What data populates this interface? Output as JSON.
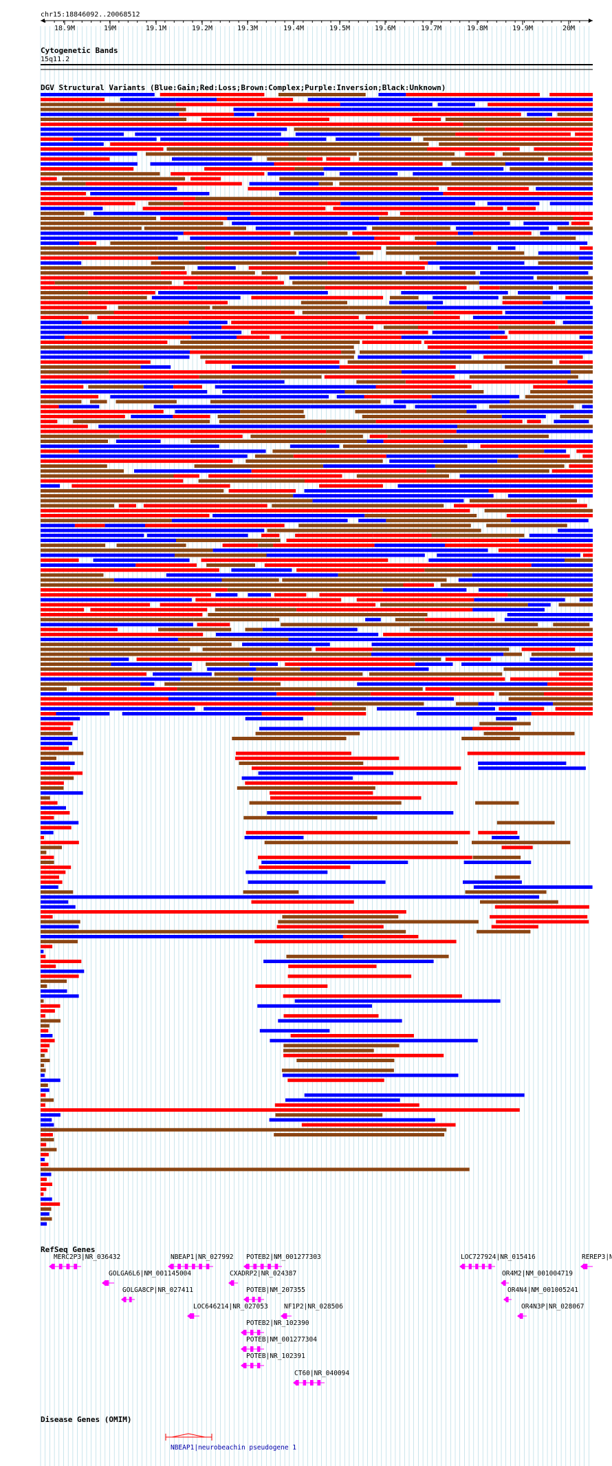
{
  "ruler": {
    "location": "chr15:18846092..20068512",
    "ticks": [
      "18.9M",
      "19M",
      "19.1M",
      "19.2M",
      "19.3M",
      "19.4M",
      "19.5M",
      "19.6M",
      "19.7M",
      "19.8M",
      "19.9M",
      "20M"
    ]
  },
  "cytoband": {
    "title": "Cytogenetic Bands",
    "band": "15q11.2"
  },
  "dgv": {
    "title": "DGV Structural Variants (Blue:Gain;Red:Loss;Brown:Complex;Purple:Inversion;Black:Unknown)",
    "colors": {
      "gain": "#0000ff",
      "loss": "#ff0000",
      "complex": "#8b4513",
      "inversion": "#800080",
      "unknown": "#000000"
    }
  },
  "refseq": {
    "title": "RefSeq Genes",
    "color": "#ff00ff",
    "genes": [
      "MERC2P3|NR_036432",
      "NBEAP1|NR_027992",
      "POTEB2|NM_001277303",
      "LOC727924|NR_015416",
      "REREP3|N",
      "GOLGA6L6|NM_001145004",
      "CXADRP2|NR_024387",
      "OR4M2|NM_001004719",
      "GOLGA8CP|NR_027411",
      "POTEB|NM_207355",
      "OR4N4|NM_001005241",
      "LOC646214|NR_027053",
      "NF1P2|NR_028506",
      "OR4N3P|NR_028067",
      "POTEB2|NR_102390",
      "POTEB|NM_001277304",
      "POTEB|NR_102391",
      "CT60|NR_040094"
    ]
  },
  "omim": {
    "title": "Disease Genes (OMIM)",
    "color": "#ff0000",
    "entries": [
      "NBEAP1|neurobeachin pseudogene 1"
    ]
  }
}
